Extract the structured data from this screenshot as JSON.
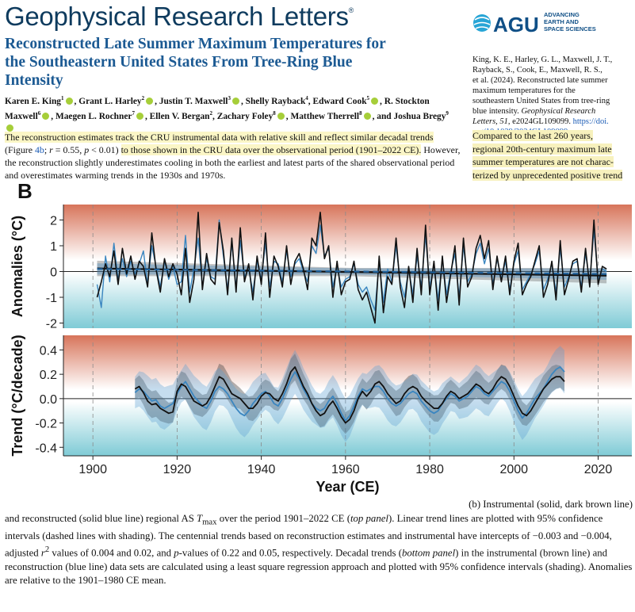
{
  "header": {
    "journal": "Geophysical Research Letters",
    "journal_mark": "®",
    "agu_abbrev": "AGU",
    "agu_line1": "ADVANCING",
    "agu_line2": "EARTH AND",
    "agu_line3": "SPACE SCIENCES"
  },
  "article": {
    "title_line1": "Reconstructed Late Summer Maximum Temperatures for",
    "title_line2": "the Southeastern United States From Tree-Ring Blue",
    "title_line3": "Intensity",
    "authors": [
      {
        "name": "Karen E. King",
        "sup": "1",
        "orcid": true
      },
      {
        "name": "Grant L. Harley",
        "sup": "2",
        "orcid": true
      },
      {
        "name": "Justin T. Maxwell",
        "sup": "3",
        "orcid": true
      },
      {
        "name": "Shelly Rayback",
        "sup": "4",
        "orcid": false
      },
      {
        "name": "Edward Cook",
        "sup": "5",
        "orcid": true
      },
      {
        "name": "R. Stockton Maxwell",
        "sup": "6",
        "orcid": true
      },
      {
        "name": "Maegen L. Rochner",
        "sup": "7",
        "orcid": true
      },
      {
        "name": "Ellen V. Bergan",
        "sup": "2",
        "orcid": false
      },
      {
        "name": "Zachary Foley",
        "sup": "8",
        "orcid": true
      },
      {
        "name": "Matthew Therrell",
        "sup": "8",
        "orcid": true
      },
      {
        "name": "Joshua Bregy",
        "sup": "9",
        "orcid": true
      }
    ]
  },
  "citation": {
    "line1": "King, K. E., Harley, G. L., Maxwell, J. T.,",
    "line2": "Rayback, S., Cook, E., Maxwell, R. S.,",
    "line3": "et al. (2024). Reconstructed late summer",
    "line4": "maximum temperatures for the",
    "line5": "southeastern United States from tree-ring",
    "line6": "blue intensity.",
    "journal": "Geophysical Research",
    "journal2": "Letters, 51",
    "volume_tail": ", e2024GL109099.",
    "doi1": "https://doi.",
    "doi2": "org/10.1029/2024GL109099"
  },
  "snippet": {
    "highlight1": "The reconstruction estimates track the CRU instrumental data with relative skill and reflect similar decadal trends",
    "part_figure": "(Figure ",
    "fig_link": "4b",
    "stats": "; r = 0.55, p < 0.01)",
    "highlight2": "to those shown in the CRU data over the observational period (1901–2022 CE).",
    "rest": "However, the reconstruction slightly underestimates cooling in both the earliest and latest parts of the shared observational period and overestimates warming trends in the 1930s and 1970s."
  },
  "callout": {
    "line1": "Compared to the last 260 years,",
    "line2": "regional 20th-century maximum late",
    "line3": "summer temperatures are not charac-",
    "line4": "terized by unprecedented positive trend"
  },
  "figure": {
    "panel_label": "B",
    "chart_data": [
      {
        "type": "line",
        "ylabel": "Anomalies (°C)",
        "ylim": [
          -2.2,
          2.6
        ],
        "yticks": [
          -2,
          -1,
          0,
          1,
          2
        ],
        "xlim": [
          1893,
          2028
        ],
        "series": [
          {
            "color": "#111111",
            "x_start": 1901,
            "values": [
              -1.0,
              -0.4,
              0.3,
              -0.2,
              0.8,
              -0.5,
              0.9,
              -0.1,
              0.6,
              -0.3,
              0.4,
              0.2,
              -0.6,
              1.5,
              0.1,
              -0.8,
              0.5,
              -0.2,
              0.3,
              -0.1,
              -0.9,
              0.9,
              -1.2,
              -0.3,
              2.3,
              -0.7,
              0.7,
              -0.3,
              -0.5,
              1.9,
              0.8,
              -0.9,
              1.3,
              -0.8,
              1.7,
              -0.4,
              0.3,
              -1.1,
              0.6,
              -0.5,
              1.5,
              -1.0,
              0.6,
              0.2,
              -0.6,
              1.0,
              -0.5,
              0.4,
              0.7,
              0.1,
              -0.7,
              1.3,
              1.0,
              2.3,
              0.5,
              1.0,
              -1.0,
              0.4,
              -0.9,
              -0.4,
              -0.3,
              0.4,
              -0.7,
              -1.1,
              -0.8,
              -1.4,
              -2.0,
              0.6,
              -1.6,
              -0.2,
              -0.5,
              1.3,
              -0.6,
              -1.4,
              0.2,
              -1.2,
              0.9,
              -0.9,
              1.8,
              -0.9,
              0.4,
              -1.5,
              0.6,
              -1.2,
              -0.1,
              1.0,
              -1.3,
              1.3,
              -0.6,
              -0.2,
              0.9,
              1.4,
              0.5,
              1.2,
              -0.7,
              0.6,
              -0.4,
              0.6,
              -0.9,
              0.4,
              1.1,
              -0.9,
              -0.5,
              -0.2,
              0.4,
              1.0,
              -1.0,
              -0.5,
              0.4,
              -1.1,
              1.2,
              -0.9,
              -0.3,
              0.4,
              0.5,
              -0.8,
              0.9,
              -0.6,
              2.0,
              -0.5,
              0.2,
              0.1
            ]
          },
          {
            "color": "#3b86c0",
            "x_start": 1901,
            "values": [
              -0.5,
              -1.4,
              0.6,
              -0.4,
              1.1,
              -0.3,
              0.5,
              -0.2,
              0.4,
              -0.1,
              0.3,
              0.8,
              -0.5,
              1.0,
              0.2,
              -0.6,
              0.4,
              -0.3,
              0.2,
              -0.5,
              -0.4,
              1.4,
              -0.8,
              0.1,
              1.3,
              -0.6,
              0.5,
              -0.2,
              -0.3,
              2.0,
              0.6,
              -0.7,
              1.1,
              -0.6,
              1.2,
              -0.2,
              0.1,
              -0.8,
              0.4,
              -0.3,
              1.1,
              -0.6,
              0.4,
              0.3,
              -0.4,
              0.8,
              -0.2,
              0.3,
              0.5,
              0.0,
              -0.4,
              1.0,
              0.7,
              1.8,
              0.6,
              0.9,
              -0.6,
              0.2,
              -0.6,
              -0.3,
              -0.2,
              0.3,
              -0.5,
              -0.8,
              -0.6,
              -1.1,
              -1.5,
              0.4,
              -1.2,
              0.1,
              -0.4,
              1.0,
              -0.4,
              -1.0,
              0.1,
              -0.9,
              0.6,
              -0.6,
              1.4,
              -0.6,
              0.3,
              -1.1,
              0.5,
              -0.9,
              0.0,
              0.7,
              -1.0,
              1.0,
              -0.4,
              -0.1,
              0.7,
              1.1,
              0.3,
              0.9,
              -0.5,
              0.5,
              -0.3,
              0.4,
              -0.7,
              0.3,
              0.8,
              -0.7,
              -0.4,
              -0.1,
              0.3,
              0.8,
              -0.7,
              -0.3,
              0.3,
              -0.8,
              0.9,
              -0.6,
              -0.2,
              0.3,
              0.4,
              -0.6,
              0.7,
              -0.4,
              1.6,
              -0.3,
              0.1,
              0.0
            ]
          }
        ],
        "trend_lines": [
          {
            "color": "#111111",
            "style": "solid",
            "x": [
              1901,
              2022
            ],
            "y": [
              0.12,
              -0.16
            ]
          },
          {
            "color": "#1d5f99",
            "style": "dashed",
            "x": [
              1901,
              2022
            ],
            "y": [
              0.1,
              -0.1
            ]
          }
        ]
      },
      {
        "type": "line",
        "ylabel": "Trend (°C/decade)",
        "xlabel": "Year (CE)",
        "ylim": [
          -0.47,
          0.52
        ],
        "yticks": [
          -0.4,
          -0.2,
          0.0,
          0.2,
          0.4
        ],
        "xticks": [
          1900,
          1920,
          1940,
          1960,
          1980,
          2000,
          2020
        ],
        "xlim": [
          1893,
          2028
        ],
        "series": [
          {
            "color": "#111111",
            "x_start": 1910,
            "values": [
              0.08,
              0.1,
              0.05,
              -0.02,
              -0.05,
              -0.04,
              -0.08,
              -0.1,
              -0.12,
              -0.11,
              0.06,
              0.12,
              0.1,
              0.04,
              -0.02,
              -0.04,
              -0.06,
              -0.04,
              0.02,
              0.1,
              0.18,
              0.16,
              0.1,
              0.04,
              0.02,
              0.0,
              -0.04,
              -0.08,
              -0.08,
              -0.04,
              0.02,
              0.05,
              0.04,
              0.0,
              -0.02,
              0.04,
              0.12,
              0.22,
              0.26,
              0.18,
              0.1,
              0.04,
              -0.04,
              -0.1,
              -0.14,
              -0.12,
              -0.06,
              -0.02,
              -0.08,
              -0.15,
              -0.2,
              -0.17,
              -0.1,
              0.0,
              0.06,
              0.02,
              0.06,
              0.12,
              0.14,
              0.1,
              0.04,
              0.0,
              -0.04,
              -0.02,
              0.04,
              0.08,
              0.1,
              0.08,
              0.02,
              -0.02,
              -0.05,
              -0.08,
              -0.08,
              -0.04,
              0.02,
              0.06,
              0.04,
              0.0,
              0.02,
              0.04,
              0.08,
              0.12,
              0.1,
              0.06,
              0.04,
              0.08,
              0.14,
              0.18,
              0.16,
              0.1,
              0.02,
              -0.06,
              -0.12,
              -0.14,
              -0.1,
              -0.04,
              0.02,
              0.08,
              0.12,
              0.16,
              0.18,
              0.18,
              0.14
            ]
          },
          {
            "color": "#3b86c0",
            "x_start": 1910,
            "values": [
              0.05,
              0.08,
              0.06,
              0.02,
              -0.02,
              -0.01,
              -0.06,
              -0.08,
              -0.06,
              -0.04,
              0.04,
              0.1,
              0.14,
              0.08,
              0.02,
              -0.02,
              -0.06,
              -0.08,
              -0.02,
              0.06,
              0.1,
              0.08,
              0.04,
              -0.02,
              -0.08,
              -0.12,
              -0.14,
              -0.1,
              -0.04,
              0.0,
              0.04,
              0.06,
              0.02,
              -0.04,
              -0.06,
              0.0,
              0.08,
              0.16,
              0.22,
              0.16,
              0.08,
              0.02,
              -0.04,
              -0.08,
              -0.1,
              -0.08,
              -0.02,
              0.02,
              -0.04,
              -0.12,
              -0.18,
              -0.14,
              -0.06,
              0.02,
              0.08,
              0.06,
              0.08,
              0.1,
              0.1,
              0.06,
              0.0,
              -0.04,
              -0.06,
              -0.04,
              0.0,
              0.04,
              0.06,
              0.04,
              -0.02,
              -0.06,
              -0.1,
              -0.12,
              -0.1,
              -0.04,
              0.0,
              0.04,
              0.02,
              -0.02,
              0.0,
              0.02,
              0.06,
              0.1,
              0.08,
              0.04,
              0.02,
              0.06,
              0.1,
              0.14,
              0.12,
              0.06,
              -0.02,
              -0.1,
              -0.16,
              -0.12,
              -0.06,
              0.0,
              0.04,
              0.08,
              0.14,
              0.2,
              0.24,
              0.26,
              0.22
            ]
          }
        ]
      }
    ]
  },
  "caption": {
    "line1": "(b) Instrumental (solid, dark brown line)",
    "body_a": "and reconstructed (solid blue line) regional AS ",
    "tmax_t": "T",
    "tmax_sub": "max",
    "body_b": " over the period 1901–2022 CE (",
    "top_panel": "top panel",
    "body_c": "). Linear trend lines are plotted with 95% confidence intervals (dashed lines with shading). The centennial trends based on reconstruction estimates and instrumental have intercepts of −0.003 and −0.004, adjusted ",
    "r2_r": "r",
    "r2_sup": "2",
    "body_d": " values of 0.004 and 0.02, and ",
    "pval_p": "p",
    "body_e": "-values of 0.22 and 0.05, respectively. Decadal trends (",
    "bottom_panel": "bottom panel",
    "body_f": ") in the instrumental (brown line) and reconstruction (blue line) data sets are calculated using a least square regression approach and plotted with 95% confidence intervals (shading). Anomalies are relative to the 1901–1980 CE mean."
  }
}
